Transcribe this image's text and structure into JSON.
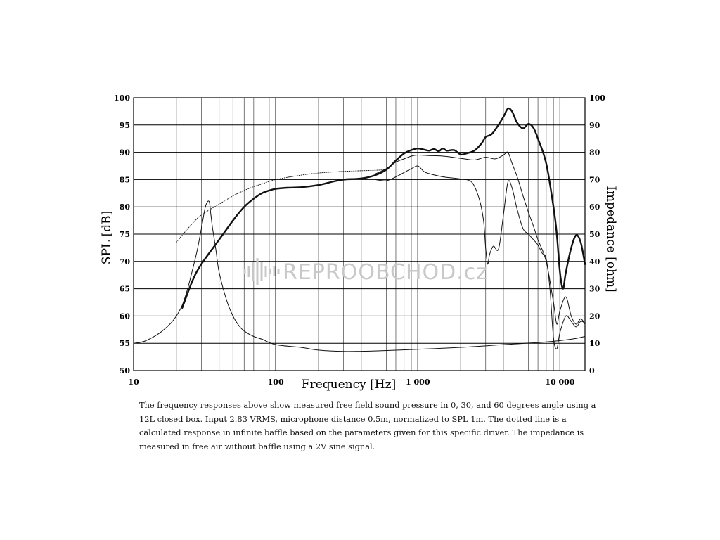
{
  "chart_data": {
    "type": "line",
    "title": "",
    "xlabel": "Frequency [Hz]",
    "ylabel": "SPL [dB]",
    "y2label": "Impedance [ohm]",
    "xscale": "log",
    "xlim": [
      10,
      15000
    ],
    "ylim": [
      50,
      100
    ],
    "y2lim": [
      0,
      100
    ],
    "grid": true,
    "x_ticks": [
      {
        "value": 10,
        "label": "10"
      },
      {
        "value": 100,
        "label": "100"
      },
      {
        "value": 1000,
        "label": "1 000"
      },
      {
        "value": 10000,
        "label": "10 000"
      }
    ],
    "y_ticks": [
      "50",
      "55",
      "60",
      "65",
      "70",
      "75",
      "80",
      "85",
      "90",
      "95",
      "100"
    ],
    "y2_ticks": [
      "0",
      "10",
      "20",
      "30",
      "40",
      "50",
      "60",
      "70",
      "80",
      "90",
      "100"
    ],
    "series": [
      {
        "style": "thick",
        "x": [
          22,
          26,
          30,
          40,
          50,
          60,
          70,
          80,
          90,
          100,
          120,
          150,
          200,
          250,
          300,
          400,
          500,
          600,
          700,
          800,
          900,
          1000,
          1100,
          1200,
          1300,
          1400,
          1500,
          1600,
          1800,
          2000,
          2200,
          2500,
          2800,
          3000,
          3300,
          3600,
          4000,
          4300,
          4600,
          5000,
          5500,
          6000,
          6500,
          7000,
          8000,
          9000,
          9500,
          10000,
          10500,
          11000,
          12000,
          13000,
          14000,
          15000
        ],
        "y": [
          61.5,
          66.5,
          69.5,
          74,
          77.5,
          80,
          81.5,
          82.5,
          83,
          83.3,
          83.5,
          83.6,
          84,
          84.6,
          85,
          85.2,
          85.8,
          86.8,
          88.5,
          89.8,
          90.4,
          90.7,
          90.5,
          90.3,
          90.6,
          90.2,
          90.7,
          90.3,
          90.4,
          89.6,
          89.8,
          90.3,
          91.6,
          92.8,
          93.3,
          94.6,
          96.5,
          98,
          97.5,
          95.4,
          94.4,
          95.2,
          94.5,
          92.5,
          88,
          80,
          75,
          68,
          65,
          68,
          72.5,
          74.8,
          73.5,
          69.5
        ]
      },
      {
        "style": "thin",
        "x": [
          500,
          600,
          700,
          800,
          900,
          1000,
          1200,
          1500,
          2000,
          2500,
          3000,
          3500,
          4000,
          4300,
          4600,
          5000,
          5500,
          6000,
          6500,
          7000,
          8000,
          9000,
          9500,
          10000,
          11000,
          12000,
          13000,
          14000,
          15000
        ],
        "y": [
          86,
          87,
          88.2,
          88.8,
          89.3,
          89.5,
          89.4,
          89.3,
          88.9,
          88.6,
          89.1,
          88.8,
          89.5,
          90,
          88,
          85.5,
          82,
          79,
          76.5,
          74,
          70,
          62.5,
          58.5,
          61,
          63.5,
          60,
          58.5,
          59.5,
          58.5
        ]
      },
      {
        "style": "thin",
        "x": [
          500,
          600,
          700,
          800,
          900,
          1000,
          1100,
          1200,
          1500,
          2000,
          2400,
          2700,
          2900,
          3000,
          3100,
          3200,
          3400,
          3700,
          4000,
          4300,
          4600,
          5000,
          5500,
          6000,
          6500,
          7000,
          7500,
          8000,
          8500,
          9000,
          9500,
          10000,
          11000,
          12000,
          13000,
          14000,
          15000
        ],
        "y": [
          85,
          84.8,
          85.5,
          86.3,
          87,
          87.5,
          86.5,
          86.1,
          85.5,
          85.1,
          84.5,
          81.5,
          77.5,
          72.5,
          69.5,
          71.3,
          72.8,
          72.3,
          78.5,
          84.5,
          83.5,
          79.5,
          76,
          75,
          74,
          73,
          71.5,
          70.5,
          65,
          56,
          54,
          57,
          60,
          59,
          58,
          59,
          58.7
        ]
      },
      {
        "style": "thin-impedance",
        "x": [
          10,
          12,
          15,
          18,
          20,
          22,
          24,
          26,
          28,
          30,
          32,
          34,
          35,
          36,
          38,
          40,
          45,
          50,
          55,
          60,
          70,
          80,
          100,
          150,
          200,
          300,
          500,
          1000,
          2000,
          4000,
          8000,
          12000,
          15000
        ],
        "y": [
          10,
          10.8,
          13.5,
          17,
          20,
          24,
          30,
          37,
          44,
          52,
          60,
          62,
          57,
          52,
          44,
          36,
          26,
          20,
          16.5,
          14.5,
          12.5,
          11.5,
          9.5,
          8.5,
          7.5,
          7,
          7.2,
          7.8,
          8.5,
          9.5,
          10.5,
          11.5,
          12.5
        ]
      },
      {
        "style": "dotted",
        "x": [
          20,
          25,
          30,
          40,
          50,
          60,
          70,
          80,
          100,
          150,
          200,
          300,
          500,
          600
        ],
        "y": [
          73.5,
          76.5,
          78.5,
          80.5,
          82,
          83,
          83.7,
          84.2,
          85,
          85.8,
          86.2,
          86.5,
          86.7,
          86.8
        ]
      }
    ],
    "watermark": "REPROOBCHOD.cz"
  },
  "caption": "The frequency responses above show measured free field sound pressure in 0, 30, and 60 degrees angle using a 12L closed box. Input 2.83 VRMS, microphone distance 0.5m, normalized to SPL 1m. The dotted line is a calculated response in infinite baffle based on the parameters given for this specific driver. The impedance is measured in free air without baffle using a 2V sine signal."
}
